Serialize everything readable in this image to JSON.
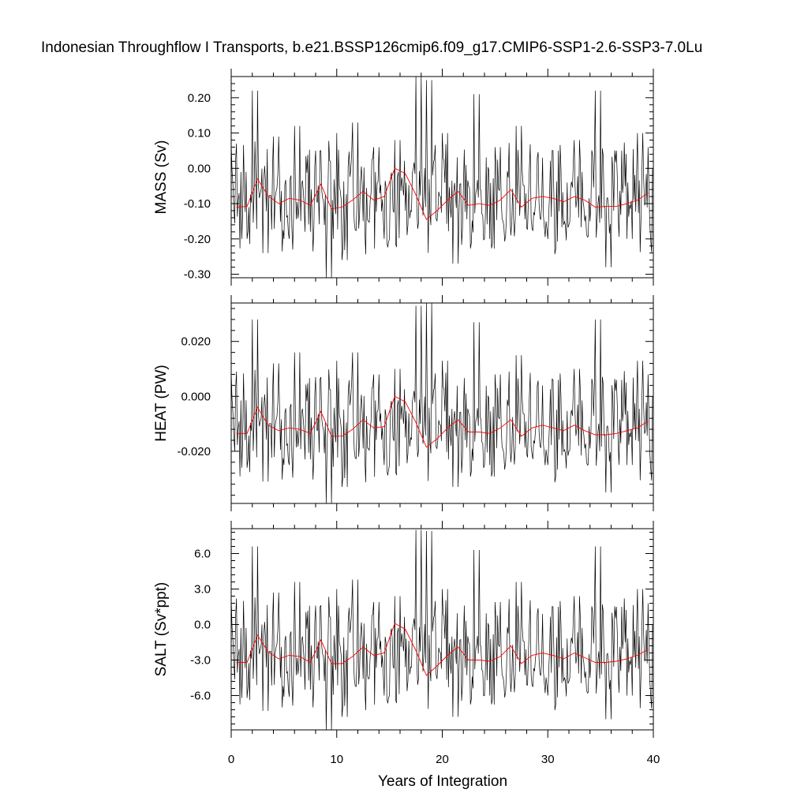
{
  "chart_data": {
    "type": "line",
    "title": "Indonesian Throughflow I Transports, b.e21.BSSP126cmip6.f09_g17.CMIP6-SSP1-2.6-SSP3-7.0Lu",
    "xlabel": "Years of Integration",
    "xlim": [
      0,
      40
    ],
    "xticks": [
      0,
      10,
      20,
      30,
      40
    ],
    "xtick_labels": [
      "0",
      "10",
      "20",
      "30",
      "40"
    ],
    "grid": false,
    "legend": "none",
    "colors": {
      "monthly": "#000000",
      "annual": "#ff0000"
    },
    "annual_years": [
      0.5,
      1.5,
      2.5,
      3.5,
      4.5,
      5.5,
      6.5,
      7.5,
      8.5,
      9.5,
      10.5,
      11.5,
      12.5,
      13.5,
      14.5,
      15.5,
      16.5,
      17.5,
      18.5,
      19.5,
      20.5,
      21.5,
      22.5,
      23.5,
      24.5,
      25.5,
      26.5,
      27.5,
      28.5,
      29.5,
      30.5,
      31.5,
      32.5,
      33.5,
      34.5,
      35.5,
      36.5,
      37.5,
      38.5,
      39.5
    ],
    "panels": [
      {
        "ylabel": "MASS (Sv)",
        "ylim": [
          -0.31,
          0.26
        ],
        "yticks": [
          0.2,
          0.1,
          0.0,
          -0.1,
          -0.2,
          -0.3
        ],
        "ytick_labels": [
          "0.20",
          "0.10",
          "0.00",
          "-0.10",
          "-0.20",
          "-0.30"
        ],
        "annual_values": [
          -0.11,
          -0.108,
          -0.03,
          -0.078,
          -0.1,
          -0.085,
          -0.09,
          -0.105,
          -0.045,
          -0.115,
          -0.11,
          -0.09,
          -0.065,
          -0.09,
          -0.08,
          -0.0,
          -0.015,
          -0.075,
          -0.145,
          -0.12,
          -0.09,
          -0.065,
          -0.105,
          -0.1,
          -0.105,
          -0.09,
          -0.06,
          -0.11,
          -0.085,
          -0.08,
          -0.085,
          -0.095,
          -0.08,
          -0.09,
          -0.11,
          -0.108,
          -0.108,
          -0.1,
          -0.09,
          -0.07
        ],
        "monthly_anchors": [
          0.07,
          -0.2,
          0.22,
          -0.24,
          0.09,
          -0.2,
          0.12,
          -0.18,
          0.05,
          -0.31,
          0.1,
          -0.26,
          0.13,
          -0.15,
          0.06,
          -0.2,
          0.08,
          -0.12,
          0.26,
          0.25,
          -0.15,
          0.1,
          -0.27,
          -0.05,
          0.21,
          -0.2,
          0.06,
          -0.19,
          0.12,
          -0.17,
          0.03,
          -0.2,
          0.05,
          -0.16,
          0.08,
          -0.15,
          0.22,
          -0.28,
          0.05,
          -0.2,
          0.1,
          0.06
        ]
      },
      {
        "ylabel": "HEAT (PW)",
        "ylim": [
          -0.039,
          0.034
        ],
        "yticks": [
          0.02,
          0.0,
          -0.02
        ],
        "ytick_labels": [
          "0.020",
          "0.000",
          "-0.020"
        ],
        "annual_values": [
          -0.0135,
          -0.0135,
          -0.004,
          -0.0105,
          -0.0125,
          -0.0115,
          -0.012,
          -0.0135,
          -0.0055,
          -0.0145,
          -0.0145,
          -0.012,
          -0.0085,
          -0.0115,
          -0.011,
          0.0,
          -0.002,
          -0.0095,
          -0.0185,
          -0.0155,
          -0.0115,
          -0.0085,
          -0.013,
          -0.013,
          -0.0135,
          -0.0115,
          -0.0085,
          -0.0145,
          -0.0115,
          -0.0105,
          -0.0115,
          -0.0125,
          -0.0105,
          -0.0125,
          -0.014,
          -0.014,
          -0.0135,
          -0.0125,
          -0.0115,
          -0.009
        ],
        "monthly_anchors": [
          0.009,
          -0.026,
          0.028,
          -0.031,
          0.012,
          -0.025,
          0.016,
          -0.023,
          0.007,
          -0.039,
          0.013,
          -0.033,
          0.016,
          -0.019,
          0.008,
          -0.025,
          0.01,
          -0.015,
          0.033,
          0.034,
          -0.019,
          0.013,
          -0.033,
          -0.006,
          0.027,
          -0.025,
          0.008,
          -0.024,
          0.015,
          -0.021,
          0.004,
          -0.025,
          0.006,
          -0.02,
          0.01,
          -0.019,
          0.028,
          -0.035,
          0.006,
          -0.025,
          0.013,
          0.008
        ]
      },
      {
        "ylabel": "SALT (Sv*ppt)",
        "ylim": [
          -8.9,
          8.1
        ],
        "yticks": [
          6.0,
          3.0,
          0.0,
          -3.0,
          -6.0
        ],
        "ytick_labels": [
          "6.0",
          "3.0",
          "0.0",
          "-3.0",
          "-6.0"
        ],
        "annual_values": [
          -3.2,
          -3.2,
          -0.9,
          -2.3,
          -2.9,
          -2.6,
          -2.7,
          -3.2,
          -1.3,
          -3.3,
          -3.3,
          -2.7,
          -1.9,
          -2.6,
          -2.4,
          0.1,
          -0.4,
          -2.2,
          -4.3,
          -3.5,
          -2.6,
          -1.9,
          -3.0,
          -3.0,
          -3.1,
          -2.7,
          -1.8,
          -3.3,
          -2.6,
          -2.4,
          -2.6,
          -2.9,
          -2.4,
          -2.8,
          -3.2,
          -3.2,
          -3.1,
          -2.9,
          -2.6,
          -2.1
        ],
        "monthly_anchors": [
          2.2,
          -6.2,
          6.6,
          -7.3,
          2.7,
          -6.1,
          3.6,
          -5.5,
          1.6,
          -8.9,
          3.0,
          -7.8,
          3.8,
          -4.6,
          1.9,
          -6.0,
          2.4,
          -3.6,
          8.0,
          7.9,
          -4.6,
          3.0,
          -7.8,
          -1.5,
          6.3,
          -6.0,
          1.9,
          -5.7,
          3.6,
          -5.1,
          0.9,
          -6.0,
          1.5,
          -4.8,
          2.4,
          -4.5,
          6.6,
          -8.0,
          1.5,
          -6.0,
          3.0,
          1.8
        ]
      }
    ]
  }
}
